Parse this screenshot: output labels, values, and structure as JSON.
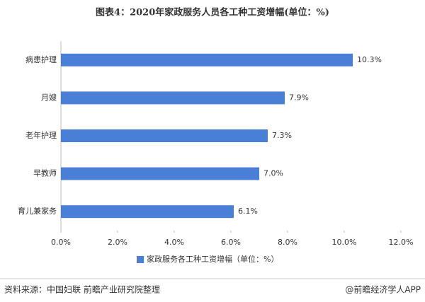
{
  "chart_data": {
    "type": "hbar",
    "title": "图表4：2020年家政服务人员各工种工资增幅(单位：%)",
    "categories": [
      "病患护理",
      "月嫂",
      "老年护理",
      "早教师",
      "育儿兼家务"
    ],
    "series": [
      {
        "name": "家政服务各工种工资增幅（单位：%）",
        "color": "#4a7fd8",
        "values": [
          10.3,
          7.9,
          7.3,
          7.0,
          6.1
        ],
        "value_labels": [
          "10.3%",
          "7.9%",
          "7.3%",
          "7.0%",
          "6.1%"
        ]
      }
    ],
    "xlim": [
      0,
      12
    ],
    "xticks": [
      {
        "value": 0,
        "label": "0.0%"
      },
      {
        "value": 2,
        "label": "2.0%"
      },
      {
        "value": 4,
        "label": "4.0%"
      },
      {
        "value": 6,
        "label": "6.0%"
      },
      {
        "value": 8,
        "label": "8.0%"
      },
      {
        "value": 10,
        "label": "10.0%"
      },
      {
        "value": 12,
        "label": "12.0%"
      }
    ],
    "legend": "bottom",
    "source": "资料来源：中国妇联 前瞻产业研究院整理",
    "brand": "@前瞻经济学人APP"
  }
}
